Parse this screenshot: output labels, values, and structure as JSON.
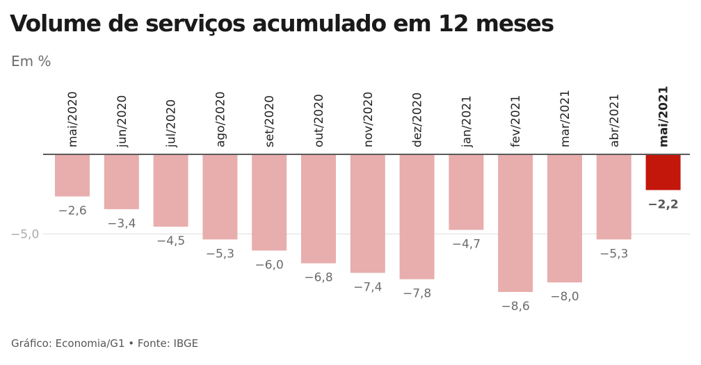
{
  "title": "Volume de serviços acumulado em 12 meses",
  "subtitle": "Em %",
  "footer": "Gráfico: Economia/G1 • Fonte: IBGE",
  "colors": {
    "bar": "#e8adad",
    "highlight_bar": "#c4170c",
    "gridline": "#dddddd",
    "baseline": "#222222",
    "value_label": "#6b6b6b",
    "highlight_label": "#555555",
    "tick_label": "#222222",
    "axis_label": "#aaaaaa"
  },
  "chart_data": {
    "type": "bar",
    "categories": [
      "mai/2020",
      "jun/2020",
      "jul/2020",
      "ago/2020",
      "set/2020",
      "out/2020",
      "nov/2020",
      "dez/2020",
      "jan/2021",
      "fev/2021",
      "mar/2021",
      "abr/2021",
      "mai/2021"
    ],
    "values": [
      -2.6,
      -3.4,
      -4.5,
      -5.3,
      -6.0,
      -6.8,
      -7.4,
      -7.8,
      -4.7,
      -8.6,
      -8.0,
      -5.3,
      -2.2
    ],
    "value_labels": [
      "−2,6",
      "−3,4",
      "−4,5",
      "−5,3",
      "−6,0",
      "−6,8",
      "−7,4",
      "−7,8",
      "−4,7",
      "−8,6",
      "−8,0",
      "−5,3",
      "−2,2"
    ],
    "highlight_index": 12,
    "y_ticks": [
      {
        "value": -5.0,
        "label": "−5,0"
      }
    ],
    "ylim": [
      -8.6,
      0
    ],
    "grid": true,
    "legend": "none",
    "xlabel": "",
    "ylabel": ""
  }
}
